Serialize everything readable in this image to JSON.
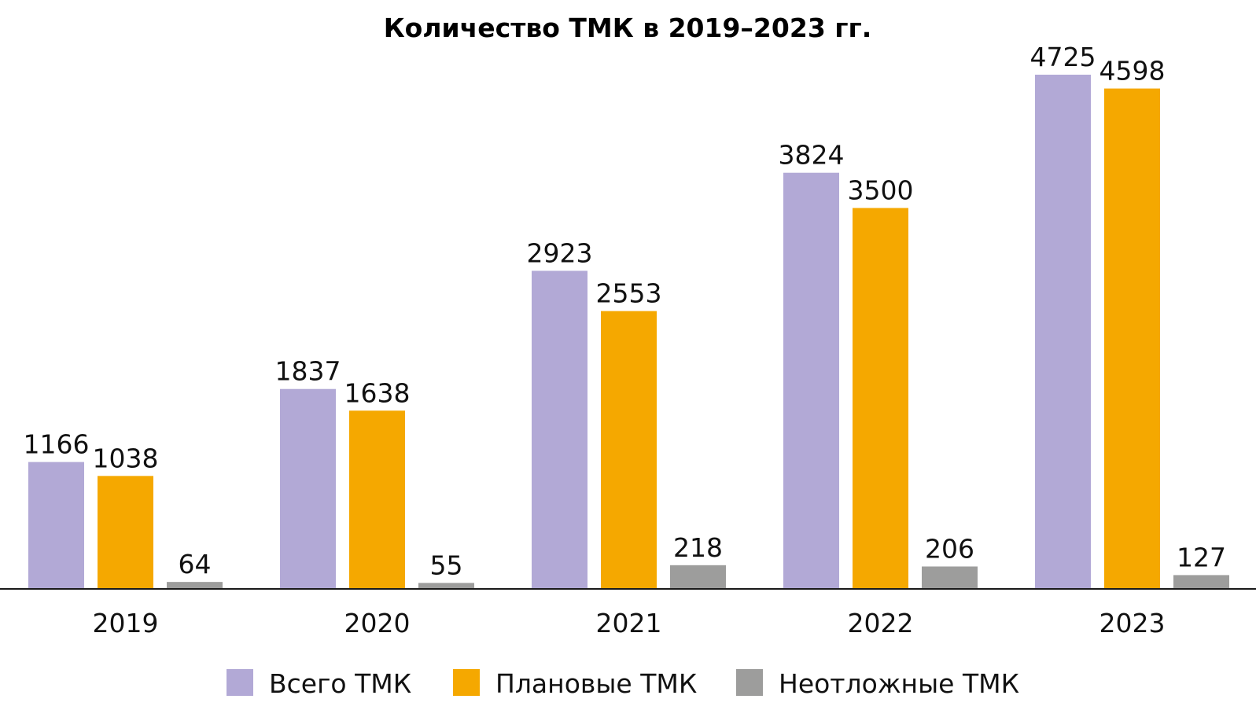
{
  "chart_data": {
    "type": "bar",
    "title": "Количество ТМК в 2019–2023 гг.",
    "xlabel": "",
    "ylabel": "",
    "categories": [
      "2019",
      "2020",
      "2021",
      "2022",
      "2023"
    ],
    "series": [
      {
        "name": "Всего ТМК",
        "color": "#b2a9d6",
        "values": [
          1166,
          1837,
          2923,
          3824,
          4725
        ]
      },
      {
        "name": "Плановые ТМК",
        "color": "#f5a800",
        "values": [
          1038,
          1638,
          2553,
          3500,
          4598
        ]
      },
      {
        "name": "Неотложные ТМК",
        "color": "#9d9d9c",
        "values": [
          64,
          55,
          218,
          206,
          127
        ]
      }
    ],
    "ylim": [
      0,
      4725
    ],
    "grid": false,
    "legend": "bottom-center",
    "axis_color": "#1a1a1a"
  }
}
